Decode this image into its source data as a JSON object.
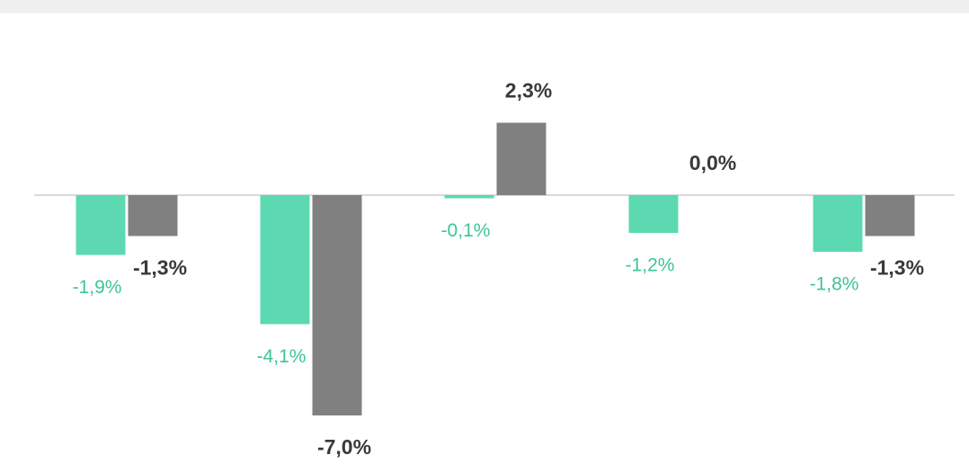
{
  "chart_data": {
    "type": "bar",
    "categories": [
      null,
      null,
      null,
      null,
      null
    ],
    "series": [
      {
        "color": "#5cd9b1",
        "values": [
          -1.9,
          -4.1,
          -0.1,
          -1.2,
          -1.8
        ],
        "value_labels": [
          "-1,9%",
          "-4,1%",
          "-0,1%",
          "-1,2%",
          "-1,8%"
        ],
        "label_color": "#3ec496"
      },
      {
        "color": "#808080",
        "values": [
          -1.3,
          -7.0,
          2.3,
          0.0,
          -1.3
        ],
        "value_labels": [
          "-1,3%",
          "-7,0%",
          "2,3%",
          "0,0%",
          "-1,3%"
        ],
        "label_color": "#3a3a3a"
      }
    ]
  }
}
